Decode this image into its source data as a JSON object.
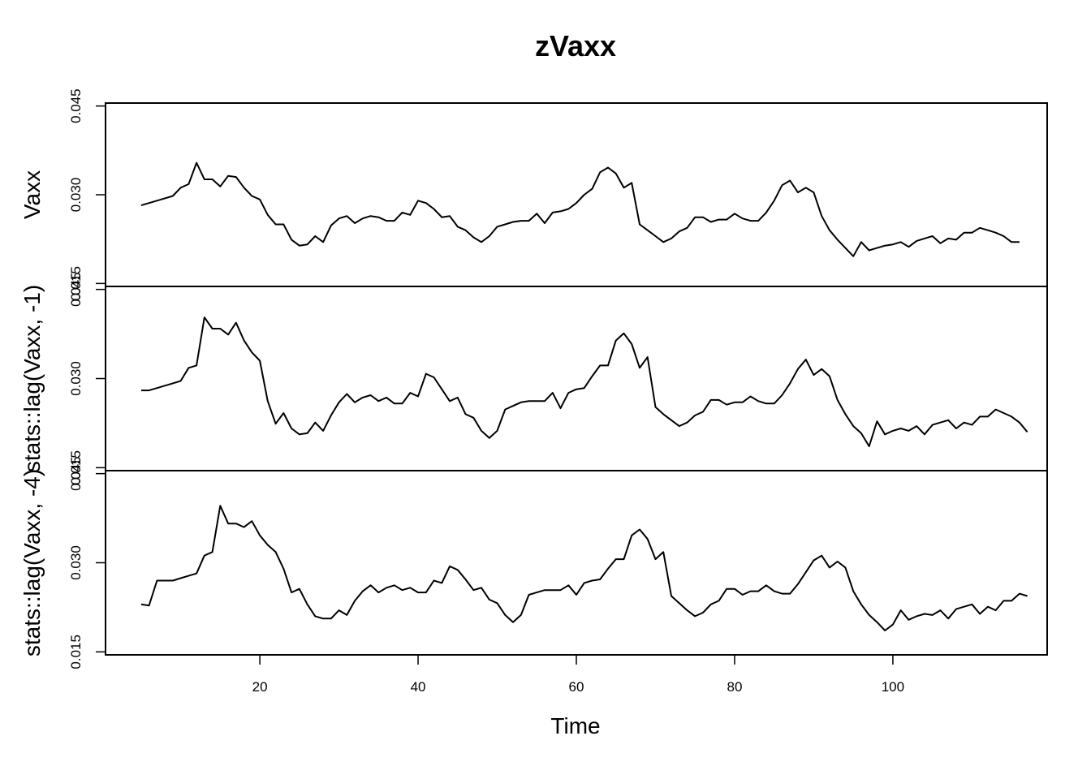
{
  "chart_data": {
    "type": "line",
    "title": "zVaxx",
    "xlabel": "Time",
    "xlim": [
      0.5,
      119.5
    ],
    "x_ticks": [
      20,
      40,
      60,
      80,
      100
    ],
    "x_tick_labels": [
      "20",
      "40",
      "60",
      "80",
      "100"
    ],
    "panels": [
      {
        "ylabel": "Vaxx",
        "ylim": [
          0.0145,
          0.0455
        ],
        "y_ticks": [
          0.015,
          0.03,
          0.045
        ],
        "y_tick_labels": [
          "0.015",
          "0.030",
          "0.045"
        ],
        "x_start": 5,
        "values": [
          0.0282,
          0.0286,
          0.029,
          0.0294,
          0.0298,
          0.0312,
          0.0318,
          0.0354,
          0.0326,
          0.0326,
          0.0314,
          0.0332,
          0.033,
          0.0312,
          0.0298,
          0.0292,
          0.0266,
          0.025,
          0.025,
          0.0224,
          0.0214,
          0.0216,
          0.023,
          0.022,
          0.0248,
          0.026,
          0.0264,
          0.0252,
          0.026,
          0.0264,
          0.0262,
          0.0256,
          0.0256,
          0.027,
          0.0266,
          0.029,
          0.0286,
          0.0276,
          0.0262,
          0.0264,
          0.0246,
          0.024,
          0.0228,
          0.022,
          0.023,
          0.0246,
          0.025,
          0.0254,
          0.0256,
          0.0256,
          0.0268,
          0.0252,
          0.027,
          0.0272,
          0.0276,
          0.0286,
          0.03,
          0.031,
          0.0338,
          0.0346,
          0.0336,
          0.0312,
          0.032,
          0.025,
          0.024,
          0.023,
          0.022,
          0.0226,
          0.0238,
          0.0244,
          0.0262,
          0.0262,
          0.0254,
          0.0258,
          0.0258,
          0.0268,
          0.026,
          0.0256,
          0.0256,
          0.027,
          0.029,
          0.0316,
          0.0324,
          0.0304,
          0.0312,
          0.0304,
          0.0264,
          0.024,
          0.0224,
          0.021,
          0.0196,
          0.022,
          0.0206,
          0.021,
          0.0214,
          0.0216,
          0.022,
          0.0212,
          0.0222,
          0.0226,
          0.023,
          0.0218,
          0.0226,
          0.0224,
          0.0236,
          0.0236,
          0.0244,
          0.024,
          0.0236,
          0.023,
          0.022,
          0.022
        ]
      },
      {
        "ylabel": "stats::lag(Vaxx, -1)",
        "ylim": [
          0.0145,
          0.0455
        ],
        "y_ticks": [
          0.015,
          0.03,
          0.045
        ],
        "y_tick_labels": [
          "0.015",
          "0.030",
          "0.045"
        ],
        "x_start": 5,
        "values": [
          0.028,
          0.028,
          0.0284,
          0.0288,
          0.0292,
          0.0296,
          0.0318,
          0.0322,
          0.0403,
          0.0384,
          0.0384,
          0.0374,
          0.0394,
          0.0364,
          0.0344,
          0.033,
          0.0262,
          0.0224,
          0.0242,
          0.0216,
          0.0206,
          0.0208,
          0.0226,
          0.0212,
          0.0238,
          0.026,
          0.0274,
          0.026,
          0.0268,
          0.0272,
          0.0262,
          0.0268,
          0.0258,
          0.0258,
          0.0276,
          0.027,
          0.0308,
          0.0302,
          0.0282,
          0.0262,
          0.0268,
          0.024,
          0.0234,
          0.0212,
          0.02,
          0.0212,
          0.0248,
          0.0254,
          0.026,
          0.0262,
          0.0262,
          0.0262,
          0.0276,
          0.025,
          0.0276,
          0.0282,
          0.0284,
          0.0304,
          0.0322,
          0.0322,
          0.0364,
          0.0376,
          0.0358,
          0.0318,
          0.0336,
          0.0252,
          0.024,
          0.023,
          0.022,
          0.0226,
          0.0238,
          0.0244,
          0.0264,
          0.0264,
          0.0256,
          0.026,
          0.026,
          0.027,
          0.0262,
          0.0258,
          0.0258,
          0.0272,
          0.0292,
          0.0316,
          0.0332,
          0.0306,
          0.0316,
          0.0304,
          0.0264,
          0.024,
          0.022,
          0.0208,
          0.0186,
          0.0228,
          0.0206,
          0.0212,
          0.0216,
          0.0212,
          0.022,
          0.0206,
          0.0222,
          0.0226,
          0.023,
          0.0216,
          0.0226,
          0.0222,
          0.0236,
          0.0236,
          0.0248,
          0.0242,
          0.0236,
          0.0226,
          0.021
        ]
      },
      {
        "ylabel": "stats::lag(Vaxx, -4)",
        "ylim": [
          0.0145,
          0.0455
        ],
        "y_ticks": [
          0.015,
          0.03,
          0.045
        ],
        "y_tick_labels": [
          "0.015",
          "0.030",
          "0.045"
        ],
        "x_start": 5,
        "values": [
          0.023,
          0.0228,
          0.027,
          0.027,
          0.027,
          0.0274,
          0.0278,
          0.0282,
          0.0312,
          0.0318,
          0.0396,
          0.0366,
          0.0366,
          0.036,
          0.037,
          0.0346,
          0.033,
          0.0318,
          0.029,
          0.025,
          0.0256,
          0.023,
          0.021,
          0.0206,
          0.0206,
          0.022,
          0.0212,
          0.0236,
          0.0252,
          0.0262,
          0.025,
          0.0258,
          0.0262,
          0.0254,
          0.0258,
          0.025,
          0.025,
          0.027,
          0.0266,
          0.0294,
          0.0288,
          0.0272,
          0.0254,
          0.0258,
          0.0238,
          0.0232,
          0.0212,
          0.02,
          0.0212,
          0.0246,
          0.025,
          0.0254,
          0.0254,
          0.0254,
          0.0262,
          0.0246,
          0.0266,
          0.027,
          0.0272,
          0.029,
          0.0306,
          0.0306,
          0.0346,
          0.0356,
          0.034,
          0.0306,
          0.0318,
          0.0244,
          0.0232,
          0.022,
          0.021,
          0.0216,
          0.023,
          0.0236,
          0.0256,
          0.0256,
          0.0246,
          0.0252,
          0.0252,
          0.0262,
          0.0252,
          0.0248,
          0.0248,
          0.0264,
          0.0284,
          0.0304,
          0.0312,
          0.0292,
          0.0302,
          0.0292,
          0.0252,
          0.023,
          0.0212,
          0.02,
          0.0186,
          0.0196,
          0.022,
          0.0204,
          0.021,
          0.0214,
          0.0212,
          0.022,
          0.0206,
          0.0222,
          0.0226,
          0.023,
          0.0214,
          0.0226,
          0.022,
          0.0236,
          0.0236,
          0.0248,
          0.0244
        ]
      }
    ]
  }
}
